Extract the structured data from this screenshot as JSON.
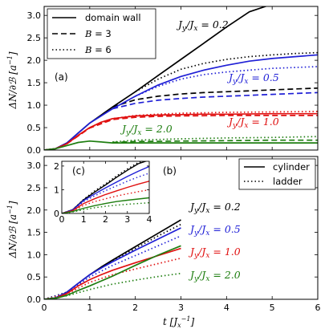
{
  "colors": {
    "black": "#000000",
    "blue": "#1f1fd6",
    "red": "#e01010",
    "green": "#1e7e10"
  },
  "labels": {
    "xlabel": "t [J_x^{-1}]",
    "ylabel": "ΔN/∂ℬ [a^{-1}]",
    "panel_a": "(a)",
    "panel_b": "(b)",
    "panel_c": "(c)"
  },
  "chart_data": [
    {
      "panel": "(a)",
      "type": "line",
      "xlim": [
        0,
        6
      ],
      "ylim": [
        0,
        3.2
      ],
      "xticks": [
        0,
        1,
        2,
        3,
        4,
        5,
        6
      ],
      "yticks": [
        "0.0",
        "0.5",
        "1.0",
        "1.5",
        "2.0",
        "2.5",
        "3.0"
      ],
      "legend": {
        "placement": "top-left",
        "entries": [
          {
            "label": "domain wall",
            "style": "solid"
          },
          {
            "label": "B = 3",
            "style": "dashed"
          },
          {
            "label": "B = 6",
            "style": "dotted"
          }
        ]
      },
      "annotations": [
        {
          "text": "J_y/J_x = 0.2",
          "color": "black"
        },
        {
          "text": "J_y/J_x = 0.5",
          "color": "blue"
        },
        {
          "text": "J_y/J_x = 1.0",
          "color": "red"
        },
        {
          "text": "J_y/J_x = 2.0",
          "color": "green"
        }
      ],
      "series": [
        {
          "ratio": "0.2",
          "color": "black",
          "style": "solid",
          "x": [
            0,
            0.25,
            0.5,
            0.75,
            1.0,
            1.25,
            1.5,
            2.0,
            2.5,
            3.0,
            3.5,
            4.0,
            4.5,
            5.0
          ],
          "y": [
            0,
            0.03,
            0.16,
            0.38,
            0.6,
            0.78,
            0.96,
            1.3,
            1.66,
            2.02,
            2.38,
            2.74,
            3.08,
            3.35
          ]
        },
        {
          "ratio": "0.2",
          "color": "black",
          "style": "dashed",
          "x": [
            1.5,
            2.0,
            2.5,
            3.0,
            3.5,
            4.0,
            4.5,
            5.0,
            5.5,
            6.0
          ],
          "y": [
            0.96,
            1.12,
            1.2,
            1.25,
            1.28,
            1.3,
            1.32,
            1.34,
            1.36,
            1.38
          ]
        },
        {
          "ratio": "0.2",
          "color": "black",
          "style": "dotted",
          "x": [
            2.0,
            2.5,
            3.0,
            3.5,
            4.0,
            4.5,
            5.0,
            5.5,
            6.0
          ],
          "y": [
            1.3,
            1.58,
            1.8,
            1.93,
            2.02,
            2.08,
            2.12,
            2.15,
            2.17
          ]
        },
        {
          "ratio": "0.5",
          "color": "blue",
          "style": "solid",
          "x": [
            0,
            0.25,
            0.5,
            0.75,
            1.0,
            1.25,
            1.5,
            2.0,
            2.5,
            3.0,
            3.5,
            4.0,
            4.5,
            5.0,
            5.5,
            6.0
          ],
          "y": [
            0,
            0.03,
            0.16,
            0.38,
            0.6,
            0.76,
            0.92,
            1.2,
            1.45,
            1.64,
            1.78,
            1.89,
            1.98,
            2.04,
            2.08,
            2.12
          ]
        },
        {
          "ratio": "0.5",
          "color": "blue",
          "style": "dashed",
          "x": [
            1.5,
            2.0,
            2.5,
            3.0,
            3.5,
            4.0,
            4.5,
            5.0,
            5.5,
            6.0
          ],
          "y": [
            0.92,
            1.04,
            1.11,
            1.15,
            1.18,
            1.2,
            1.22,
            1.24,
            1.26,
            1.28
          ]
        },
        {
          "ratio": "0.5",
          "color": "blue",
          "style": "dotted",
          "x": [
            2.0,
            2.5,
            3.0,
            3.5,
            4.0,
            4.5,
            5.0,
            5.5,
            6.0
          ],
          "y": [
            1.2,
            1.42,
            1.58,
            1.68,
            1.74,
            1.78,
            1.82,
            1.84,
            1.86
          ]
        },
        {
          "ratio": "1.0",
          "color": "red",
          "style": "solid",
          "x": [
            0,
            0.25,
            0.5,
            0.75,
            1.0,
            1.25,
            1.5,
            2.0,
            2.5,
            3.0,
            3.5,
            4.0,
            5.0,
            6.0
          ],
          "y": [
            0,
            0.03,
            0.14,
            0.33,
            0.5,
            0.62,
            0.7,
            0.76,
            0.78,
            0.79,
            0.8,
            0.8,
            0.81,
            0.81
          ]
        },
        {
          "ratio": "1.0",
          "color": "red",
          "style": "dashed",
          "x": [
            0.5,
            1.0,
            1.5,
            2.0,
            2.5,
            3.0,
            4.0,
            5.0,
            6.0
          ],
          "y": [
            0.14,
            0.49,
            0.68,
            0.73,
            0.75,
            0.76,
            0.77,
            0.77,
            0.77
          ]
        },
        {
          "ratio": "1.0",
          "color": "red",
          "style": "dotted",
          "x": [
            0.5,
            1.0,
            1.5,
            2.0,
            2.5,
            3.0,
            4.0,
            5.0,
            6.0
          ],
          "y": [
            0.14,
            0.5,
            0.7,
            0.77,
            0.8,
            0.82,
            0.84,
            0.85,
            0.86
          ]
        },
        {
          "ratio": "2.0",
          "color": "green",
          "style": "solid",
          "x": [
            0,
            0.25,
            0.5,
            0.75,
            1.0,
            1.25,
            1.5,
            2.0,
            3.0,
            4.0,
            5.0,
            6.0
          ],
          "y": [
            0,
            0.03,
            0.1,
            0.17,
            0.2,
            0.18,
            0.16,
            0.16,
            0.16,
            0.16,
            0.16,
            0.16
          ]
        },
        {
          "ratio": "2.0",
          "color": "green",
          "style": "dashed",
          "x": [
            1.5,
            2.0,
            3.0,
            4.0,
            5.0,
            6.0
          ],
          "y": [
            0.17,
            0.19,
            0.2,
            0.21,
            0.22,
            0.22
          ]
        },
        {
          "ratio": "2.0",
          "color": "green",
          "style": "dotted",
          "x": [
            1.5,
            2.0,
            3.0,
            4.0,
            5.0,
            6.0
          ],
          "y": [
            0.18,
            0.22,
            0.25,
            0.27,
            0.28,
            0.3
          ]
        }
      ]
    },
    {
      "panel": "(b)",
      "type": "line",
      "xlim": [
        0,
        6
      ],
      "ylim": [
        0,
        3.2
      ],
      "xticks": [
        0,
        1,
        2,
        3,
        4,
        5,
        6
      ],
      "yticks": [
        "0.0",
        "0.5",
        "1.0",
        "1.5",
        "2.0",
        "2.5",
        "3.0"
      ],
      "xlabel": "t [J_x^{-1}]",
      "legend": {
        "placement": "top-right",
        "entries": [
          {
            "label": "cylinder",
            "style": "solid"
          },
          {
            "label": "ladder",
            "style": "dotted"
          }
        ]
      },
      "annotations": [
        {
          "text": "J_y/J_x = 0.2",
          "color": "black"
        },
        {
          "text": "J_y/J_x = 0.5",
          "color": "blue"
        },
        {
          "text": "J_y/J_x = 1.0",
          "color": "red"
        },
        {
          "text": "J_y/J_x = 2.0",
          "color": "green"
        }
      ],
      "series": [
        {
          "ratio": "0.2",
          "color": "black",
          "style": "solid",
          "x": [
            0,
            0.25,
            0.5,
            0.75,
            1.0,
            1.25,
            1.5,
            2.0,
            2.5,
            3.0
          ],
          "y": [
            0,
            0.03,
            0.16,
            0.36,
            0.55,
            0.72,
            0.88,
            1.18,
            1.48,
            1.78
          ]
        },
        {
          "ratio": "0.2",
          "color": "black",
          "style": "dotted",
          "x": [
            0,
            0.5,
            1.0,
            1.5,
            2.0,
            2.5,
            3.0
          ],
          "y": [
            0,
            0.16,
            0.55,
            0.86,
            1.14,
            1.42,
            1.68
          ]
        },
        {
          "ratio": "0.5",
          "color": "blue",
          "style": "solid",
          "x": [
            0,
            0.25,
            0.5,
            0.75,
            1.0,
            1.25,
            1.5,
            2.0,
            2.5,
            3.0
          ],
          "y": [
            0,
            0.03,
            0.16,
            0.36,
            0.55,
            0.7,
            0.84,
            1.1,
            1.35,
            1.6
          ]
        },
        {
          "ratio": "0.5",
          "color": "blue",
          "style": "dotted",
          "x": [
            0,
            0.5,
            1.0,
            1.5,
            2.0,
            2.5,
            3.0
          ],
          "y": [
            0,
            0.15,
            0.5,
            0.76,
            0.98,
            1.2,
            1.42
          ]
        },
        {
          "ratio": "1.0",
          "color": "red",
          "style": "solid",
          "x": [
            0,
            0.25,
            0.5,
            0.75,
            1.0,
            1.25,
            1.5,
            2.0,
            2.5,
            3.0
          ],
          "y": [
            0,
            0.02,
            0.13,
            0.3,
            0.44,
            0.55,
            0.65,
            0.82,
            0.98,
            1.14
          ]
        },
        {
          "ratio": "1.0",
          "color": "red",
          "style": "dotted",
          "x": [
            0,
            0.5,
            1.0,
            1.5,
            2.0,
            2.5,
            3.0
          ],
          "y": [
            0,
            0.12,
            0.38,
            0.55,
            0.68,
            0.8,
            0.92
          ]
        },
        {
          "ratio": "2.0",
          "color": "green",
          "style": "solid",
          "x": [
            0,
            0.25,
            0.5,
            0.75,
            1.0,
            1.5,
            2.0,
            2.5,
            3.0
          ],
          "y": [
            0,
            0.02,
            0.09,
            0.2,
            0.3,
            0.52,
            0.76,
            0.99,
            1.2
          ]
        },
        {
          "ratio": "2.0",
          "color": "green",
          "style": "dotted",
          "x": [
            0,
            0.5,
            1.0,
            1.5,
            2.0,
            2.5,
            3.0
          ],
          "y": [
            0,
            0.08,
            0.22,
            0.34,
            0.43,
            0.51,
            0.58
          ]
        }
      ]
    },
    {
      "panel": "(c)",
      "type": "line",
      "xlim": [
        0,
        4
      ],
      "ylim": [
        0,
        2.2
      ],
      "xticks": [
        0,
        1,
        2,
        3,
        4
      ],
      "yticks": [
        "0",
        "1",
        "2"
      ],
      "series": [
        {
          "ratio": "0.2",
          "color": "black",
          "style": "solid",
          "x": [
            0,
            0.5,
            1.0,
            1.5,
            2.0,
            2.5,
            3.0,
            3.5,
            4.0
          ],
          "y": [
            0,
            0.16,
            0.58,
            0.9,
            1.2,
            1.52,
            1.82,
            2.1,
            2.38
          ]
        },
        {
          "ratio": "0.2",
          "color": "black",
          "style": "dotted",
          "x": [
            0,
            0.5,
            1.0,
            1.5,
            2.0,
            2.5,
            3.0,
            3.5,
            4.0
          ],
          "y": [
            0,
            0.16,
            0.6,
            0.95,
            1.25,
            1.58,
            1.88,
            2.15,
            2.42
          ]
        },
        {
          "ratio": "0.5",
          "color": "blue",
          "style": "solid",
          "x": [
            0,
            0.5,
            1.0,
            1.5,
            2.0,
            2.5,
            3.0,
            3.5,
            4.0
          ],
          "y": [
            0,
            0.15,
            0.55,
            0.82,
            1.08,
            1.32,
            1.56,
            1.78,
            1.98
          ]
        },
        {
          "ratio": "0.5",
          "color": "blue",
          "style": "dotted",
          "x": [
            0,
            0.5,
            1.0,
            1.5,
            2.0,
            2.5,
            3.0,
            3.5,
            4.0
          ],
          "y": [
            0,
            0.14,
            0.5,
            0.74,
            0.96,
            1.16,
            1.36,
            1.54,
            1.7
          ]
        },
        {
          "ratio": "1.0",
          "color": "red",
          "style": "solid",
          "x": [
            0,
            0.5,
            1.0,
            1.5,
            2.0,
            2.5,
            3.0,
            3.5,
            4.0
          ],
          "y": [
            0,
            0.12,
            0.42,
            0.62,
            0.8,
            0.95,
            1.1,
            1.24,
            1.36
          ]
        },
        {
          "ratio": "1.0",
          "color": "red",
          "style": "dotted",
          "x": [
            0,
            0.5,
            1.0,
            1.5,
            2.0,
            2.5,
            3.0,
            3.5,
            4.0
          ],
          "y": [
            0,
            0.1,
            0.34,
            0.5,
            0.62,
            0.73,
            0.83,
            0.92,
            1.0
          ]
        },
        {
          "ratio": "2.0",
          "color": "green",
          "style": "solid",
          "x": [
            0,
            0.5,
            1.0,
            1.5,
            2.0,
            2.5,
            3.0,
            3.5,
            4.0
          ],
          "y": [
            0,
            0.08,
            0.22,
            0.33,
            0.42,
            0.5,
            0.56,
            0.61,
            0.66
          ]
        },
        {
          "ratio": "2.0",
          "color": "green",
          "style": "dotted",
          "x": [
            0,
            0.5,
            1.0,
            1.5,
            2.0,
            2.5,
            3.0,
            3.5,
            4.0
          ],
          "y": [
            0,
            0.06,
            0.16,
            0.24,
            0.3,
            0.35,
            0.39,
            0.42,
            0.45
          ]
        }
      ]
    }
  ]
}
